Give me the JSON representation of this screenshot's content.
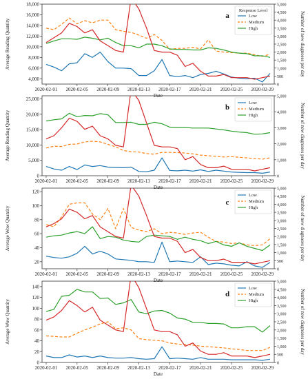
{
  "figure": {
    "panels": [
      "a",
      "b",
      "c",
      "d"
    ]
  },
  "chart_data": [
    {
      "type": "line",
      "panel_label": "a",
      "xlabel": "Date",
      "ylabel": "Average Reading Quantity",
      "ylabel_right": "Number of new diagnoses per day",
      "ylim": [
        3000,
        18000
      ],
      "yticks": [
        4000,
        6000,
        8000,
        10000,
        12000,
        14000,
        16000,
        18000
      ],
      "ylim_right": [
        0,
        5000
      ],
      "yticks_right": [
        0,
        500,
        1000,
        1500,
        2000,
        2500,
        3000,
        3500,
        4000,
        4500,
        5000
      ],
      "x_tick_labels": [
        "2020-02-01",
        "2020-02-05",
        "2020-02-09",
        "2020-02-13",
        "2020-02-17",
        "2020-02-21",
        "2020-02-25",
        "2020-02-29"
      ],
      "legend": {
        "title": "Response Level",
        "position": "top-right",
        "entries": [
          "Low",
          "Medium",
          "High"
        ]
      },
      "series": [
        {
          "name": "Low",
          "color": "#1f77b4",
          "style": "solid",
          "axis": "left",
          "values": [
            6700,
            6200,
            5500,
            6800,
            7000,
            8700,
            8000,
            9000,
            7200,
            6000,
            6000,
            5900,
            4600,
            4600,
            5500,
            7600,
            4600,
            4400,
            4600,
            4200,
            4800,
            5000,
            5400,
            4900,
            4300,
            4100,
            4000,
            4100,
            3400,
            5000
          ]
        },
        {
          "name": "Medium",
          "color": "#ff7f0e",
          "style": "dashed",
          "axis": "left",
          "values": [
            13500,
            13200,
            14200,
            15400,
            14300,
            14900,
            14500,
            15000,
            15000,
            13200,
            12900,
            12700,
            12200,
            11600,
            12300,
            11200,
            9500,
            9700,
            9700,
            9900,
            9600,
            11300,
            9200,
            9000,
            8900,
            8800,
            8800,
            8500,
            8200,
            8600
          ]
        },
        {
          "name": "High",
          "color": "#2ca02c",
          "style": "solid",
          "axis": "left",
          "values": [
            10600,
            11100,
            11500,
            11500,
            11400,
            11800,
            11600,
            11300,
            11600,
            10800,
            10200,
            10200,
            9800,
            10500,
            10500,
            10200,
            9600,
            9500,
            9500,
            9400,
            9400,
            9800,
            9700,
            9400,
            9000,
            8800,
            8700,
            8300,
            8300,
            8000
          ]
        },
        {
          "name": "New diagnoses",
          "color": "#d62728",
          "style": "solid",
          "axis": "right",
          "values": [
            2600,
            2900,
            3200,
            3800,
            3600,
            3200,
            3400,
            2700,
            2400,
            2100,
            2000,
            5400,
            4700,
            3500,
            2100,
            2000,
            2000,
            1800,
            1100,
            1300,
            800,
            500,
            500,
            600,
            400,
            400,
            400,
            300,
            400,
            500
          ]
        }
      ]
    },
    {
      "type": "line",
      "panel_label": "b",
      "xlabel": "Date",
      "ylabel": "Average Reading Quantity",
      "ylabel_right": "Number of new diagnoses per day",
      "ylim": [
        0,
        26000
      ],
      "yticks": [
        0,
        5000,
        10000,
        15000,
        20000,
        25000
      ],
      "ylim_right": [
        0,
        5000
      ],
      "yticks_right": [
        0,
        1000,
        2000,
        3000,
        4000,
        5000
      ],
      "x_tick_labels": [
        "2020-02-01",
        "2020-02-05",
        "2020-02-09",
        "2020-02-13",
        "2020-02-17",
        "2020-02-21",
        "2020-02-25",
        "2020-02-29"
      ],
      "legend": {
        "title": "",
        "position": "top-right",
        "entries": [
          "Low",
          "Medium",
          "High"
        ]
      },
      "series": [
        {
          "name": "Low",
          "color": "#1f77b4",
          "style": "solid",
          "axis": "left",
          "values": [
            3000,
            2200,
            1800,
            3000,
            2000,
            3500,
            3000,
            3300,
            2800,
            2700,
            2600,
            2800,
            1400,
            1300,
            1800,
            5800,
            1700,
            1600,
            1800,
            1500,
            1900,
            1400,
            1800,
            1500,
            1200,
            1100,
            1000,
            1000,
            800,
            1200
          ]
        },
        {
          "name": "Medium",
          "color": "#ff7f0e",
          "style": "dashed",
          "axis": "left",
          "values": [
            9000,
            9600,
            9500,
            10200,
            10300,
            11000,
            11200,
            11000,
            10200,
            9400,
            8200,
            7800,
            7700,
            7200,
            7000,
            7600,
            7600,
            7500,
            7400,
            7100,
            6700,
            6500,
            6300,
            6100,
            6200,
            6000,
            5800,
            5600,
            5400,
            5800
          ]
        },
        {
          "name": "High",
          "color": "#2ca02c",
          "style": "solid",
          "axis": "left",
          "values": [
            17800,
            18200,
            18500,
            20300,
            19200,
            19600,
            19500,
            20200,
            19800,
            17300,
            17300,
            17400,
            16700,
            16700,
            17400,
            16900,
            15800,
            15700,
            15700,
            15500,
            15500,
            15500,
            15200,
            14900,
            14500,
            14200,
            14000,
            13500,
            13600,
            14000
          ]
        },
        {
          "name": "New diagnoses",
          "color": "#d62728",
          "style": "solid",
          "axis": "right",
          "values": [
            2300,
            2500,
            3000,
            3600,
            3400,
            2900,
            3100,
            2500,
            2300,
            1900,
            1800,
            5400,
            4700,
            3300,
            1900,
            1800,
            1800,
            1700,
            1000,
            1200,
            700,
            500,
            500,
            600,
            400,
            400,
            400,
            300,
            400,
            500
          ]
        }
      ]
    },
    {
      "type": "line",
      "panel_label": "c",
      "xlabel": "Date",
      "ylabel": "Average Wow Quantity",
      "ylabel_right": "Number of new diagnoses per day",
      "ylim": [
        10,
        125
      ],
      "yticks": [
        20,
        40,
        60,
        80,
        100,
        120
      ],
      "ylim_right": [
        0,
        5000
      ],
      "yticks_right": [
        0,
        500,
        1000,
        1500,
        2000,
        2500,
        3000,
        3500,
        4000,
        4500,
        5000
      ],
      "x_tick_labels": [
        "2020-02-01",
        "2020-02-05",
        "2020-02-09",
        "2020-02-13",
        "2020-02-17",
        "2020-02-21",
        "2020-02-25",
        "2020-02-29"
      ],
      "legend": {
        "title": "",
        "position": "top-right",
        "entries": [
          "Low",
          "Medium",
          "High"
        ]
      },
      "series": [
        {
          "name": "Low",
          "color": "#1f77b4",
          "style": "solid",
          "axis": "left",
          "values": [
            28,
            26,
            25,
            27,
            32,
            42,
            31,
            35,
            31,
            24,
            23,
            22,
            20,
            20,
            19,
            48,
            20,
            21,
            20,
            19,
            27,
            16,
            18,
            17,
            15,
            14,
            20,
            14,
            12,
            19
          ]
        },
        {
          "name": "Medium",
          "color": "#ff7f0e",
          "style": "dashed",
          "axis": "left",
          "values": [
            73,
            70,
            84,
            102,
            104,
            104,
            88,
            80,
            96,
            67,
            96,
            69,
            65,
            63,
            67,
            60,
            62,
            61,
            59,
            61,
            62,
            55,
            49,
            48,
            46,
            47,
            44,
            43,
            44,
            53
          ]
        },
        {
          "name": "High",
          "color": "#2ca02c",
          "style": "solid",
          "axis": "left",
          "values": [
            55,
            57,
            58,
            61,
            63,
            60,
            70,
            53,
            56,
            55,
            51,
            49,
            48,
            56,
            58,
            57,
            56,
            52,
            55,
            52,
            50,
            46,
            49,
            44,
            42,
            47,
            42,
            39,
            36,
            44
          ]
        },
        {
          "name": "New diagnoses",
          "color": "#d62728",
          "style": "solid",
          "axis": "right",
          "values": [
            2600,
            2800,
            3100,
            3700,
            3500,
            3100,
            3300,
            2600,
            2300,
            2000,
            1900,
            5200,
            4500,
            3300,
            2000,
            1900,
            1900,
            1700,
            1000,
            1200,
            700,
            500,
            500,
            600,
            400,
            400,
            400,
            300,
            400,
            500
          ]
        }
      ]
    },
    {
      "type": "line",
      "panel_label": "d",
      "xlabel": "Date",
      "ylabel": "Average Wow Quantity",
      "ylabel_right": "Number of new diagnoses per day",
      "ylim": [
        0,
        150
      ],
      "yticks": [
        0,
        20,
        40,
        60,
        80,
        100,
        120,
        140
      ],
      "ylim_right": [
        0,
        5000
      ],
      "yticks_right": [
        0,
        500,
        1000,
        1500,
        2000,
        2500,
        3000,
        3500,
        4000,
        4500,
        5000
      ],
      "x_tick_labels": [
        "2020-02-01",
        "2020-02-05",
        "2020-02-09",
        "2020-02-13",
        "2020-02-17",
        "2020-02-21",
        "2020-02-25",
        "2020-02-29"
      ],
      "legend": {
        "title": "",
        "position": "top-right",
        "entries": [
          "Low",
          "Medium",
          "High"
        ]
      },
      "series": [
        {
          "name": "Low",
          "color": "#1f77b4",
          "style": "solid",
          "axis": "left",
          "values": [
            12,
            9,
            9,
            14,
            10,
            12,
            9,
            12,
            9,
            8,
            8,
            9,
            7,
            6,
            7,
            29,
            7,
            8,
            7,
            6,
            9,
            6,
            6,
            6,
            5,
            5,
            5,
            5,
            4,
            6
          ]
        },
        {
          "name": "Medium",
          "color": "#ff7f0e",
          "style": "dashed",
          "axis": "left",
          "values": [
            49,
            48,
            47,
            47,
            54,
            60,
            65,
            71,
            75,
            62,
            64,
            60,
            44,
            42,
            41,
            40,
            36,
            34,
            33,
            32,
            30,
            29,
            28,
            27,
            25,
            24,
            22,
            22,
            22,
            28
          ]
        },
        {
          "name": "High",
          "color": "#2ca02c",
          "style": "solid",
          "axis": "left",
          "values": [
            94,
            98,
            122,
            124,
            135,
            130,
            130,
            118,
            119,
            107,
            110,
            116,
            93,
            90,
            95,
            96,
            91,
            82,
            80,
            74,
            74,
            72,
            72,
            71,
            64,
            64,
            66,
            66,
            56,
            68
          ]
        },
        {
          "name": "New diagnoses",
          "color": "#d62728",
          "style": "solid",
          "axis": "right",
          "values": [
            2600,
            2800,
            3200,
            3800,
            3500,
            3100,
            3400,
            2600,
            2300,
            2000,
            1900,
            5400,
            4600,
            3300,
            2000,
            1900,
            1900,
            1700,
            1000,
            1200,
            700,
            500,
            500,
            600,
            400,
            400,
            400,
            300,
            400,
            500
          ]
        }
      ]
    }
  ]
}
